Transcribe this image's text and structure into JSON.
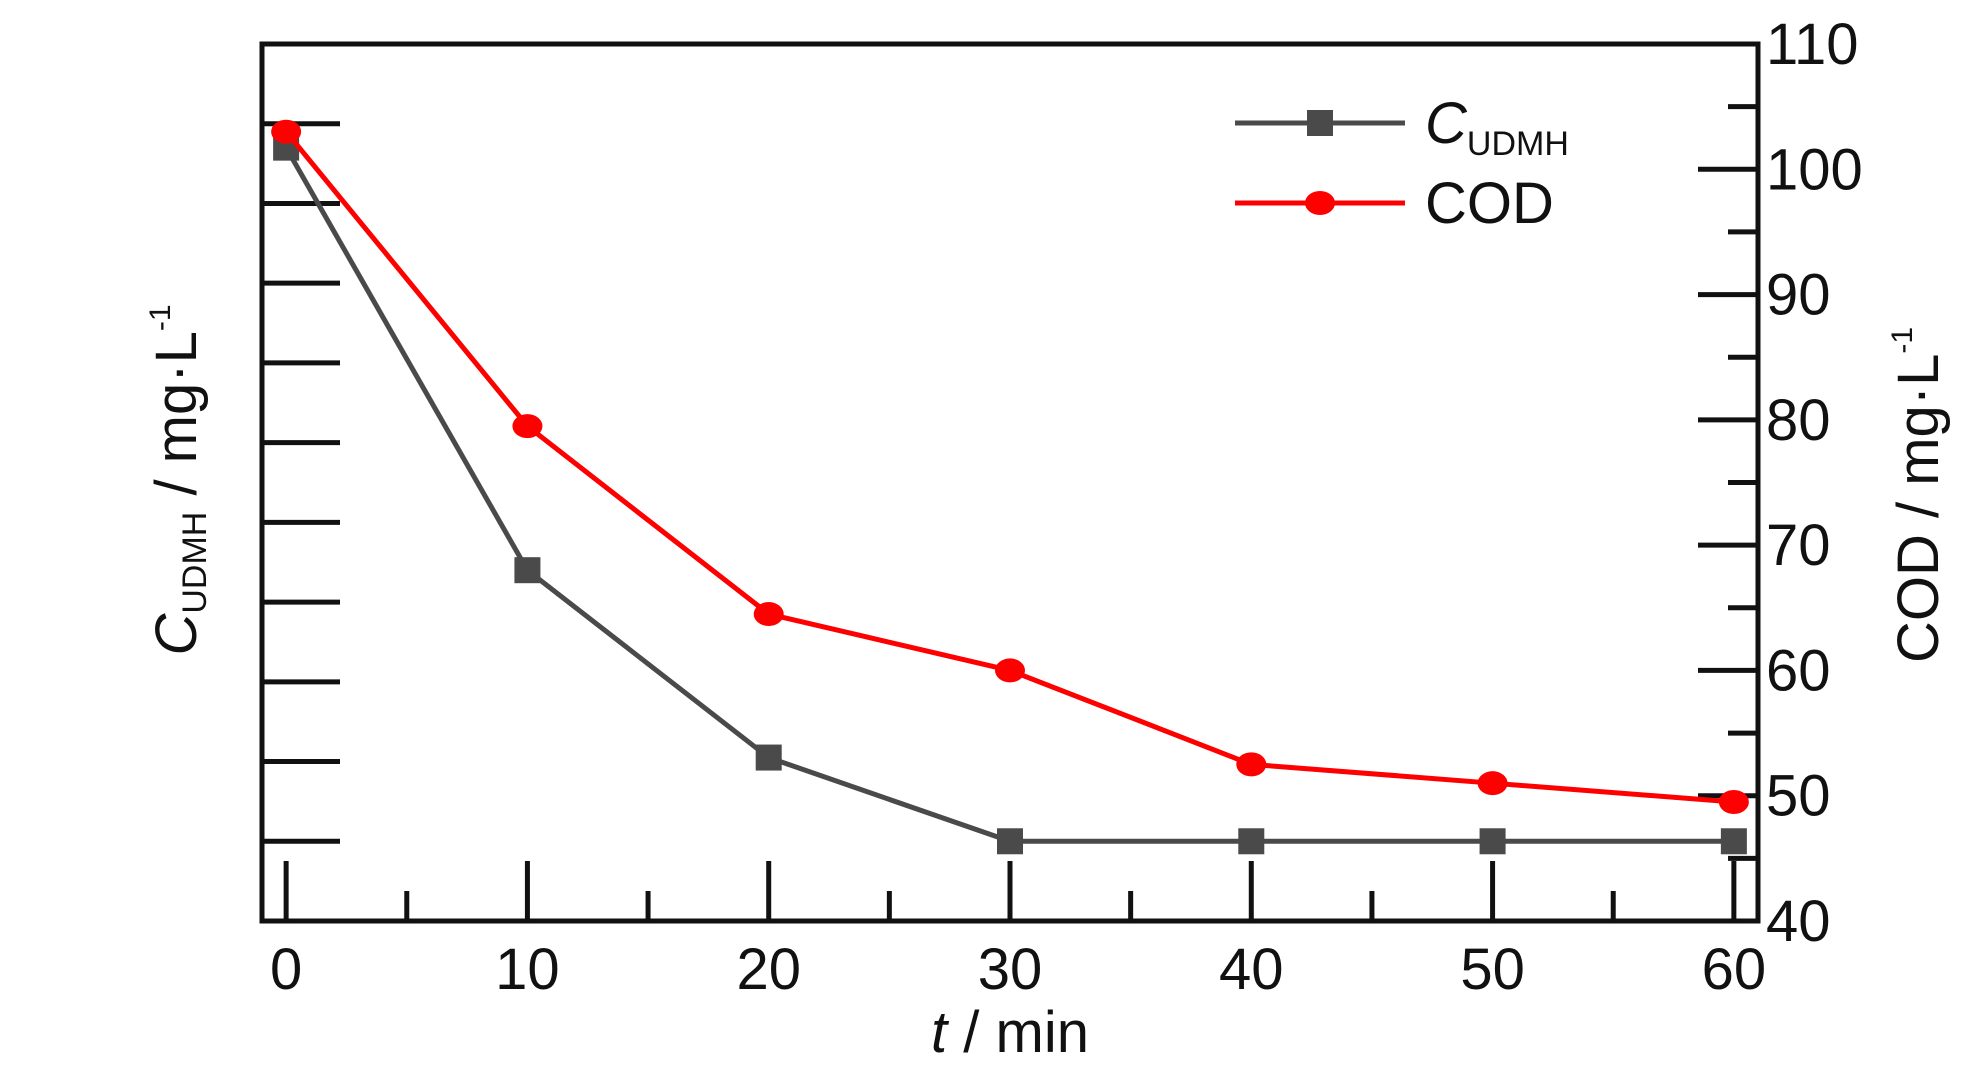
{
  "chart_data": {
    "type": "line",
    "x": [
      0,
      10,
      20,
      30,
      40,
      50,
      60
    ],
    "xlim": [
      -1,
      61
    ],
    "xticks": [
      0,
      10,
      20,
      30,
      40,
      50,
      60
    ],
    "xlabel": {
      "italic": "t",
      "rest": " / min"
    },
    "y_left": {
      "label": {
        "main": "C",
        "sub": "UDMH",
        "rest": " / mg·L",
        "sup": "-1"
      },
      "lim": [
        0,
        11
      ],
      "ticks": [
        1,
        2,
        3,
        4,
        5,
        6,
        7,
        8,
        9,
        10
      ],
      "tick_labels_shown": false
    },
    "y_right": {
      "label": {
        "main": "COD / mg·L",
        "sup": "-1"
      },
      "lim": [
        40,
        110
      ],
      "ticks": [
        40,
        50,
        60,
        70,
        80,
        90,
        100,
        110
      ],
      "tick_labels": [
        "40",
        "50",
        "60",
        "70",
        "80",
        "90",
        "100",
        "110"
      ]
    },
    "series": [
      {
        "name": "C",
        "name_sub": "UDMH",
        "axis": "left",
        "marker": "square",
        "color": "#4a4a4a",
        "values": [
          9.7,
          4.4,
          2.05,
          1.0,
          1.0,
          1.0,
          1.0
        ]
      },
      {
        "name": "COD",
        "axis": "right",
        "marker": "circle",
        "color": "#ff0000",
        "values": [
          103.0,
          79.5,
          64.5,
          60.0,
          52.5,
          51.0,
          49.5
        ]
      }
    ],
    "grid": false,
    "legend_position": "top-right"
  }
}
